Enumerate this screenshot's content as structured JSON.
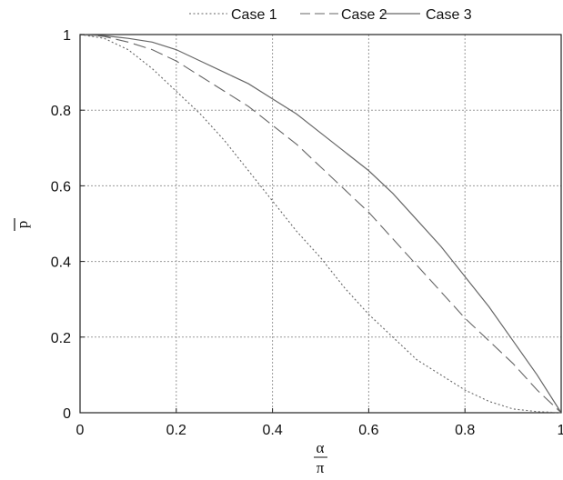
{
  "chart_data": {
    "type": "line",
    "title": "",
    "xlabel_num": "α",
    "xlabel_den": "π",
    "ylabel": "p",
    "xlim": [
      0,
      1
    ],
    "ylim": [
      0,
      1
    ],
    "x_ticks": [
      0,
      0.2,
      0.4,
      0.6,
      0.8,
      1
    ],
    "x_tick_labels": [
      "0",
      "0.2",
      "0.4",
      "0.6",
      "0.8",
      "1"
    ],
    "y_ticks": [
      0,
      0.2,
      0.4,
      0.6,
      0.8,
      1
    ],
    "y_tick_labels": [
      "0",
      "0.2",
      "0.4",
      "0.6",
      "0.8",
      "1"
    ],
    "grid": true,
    "legend_position": "top",
    "colors": {
      "series": "#666666",
      "grid": "#9a9a9a",
      "axis": "#222222"
    },
    "series": [
      {
        "name": "Case 1",
        "style": "dotted",
        "x": [
          0,
          0.05,
          0.1,
          0.15,
          0.2,
          0.25,
          0.3,
          0.35,
          0.4,
          0.45,
          0.5,
          0.55,
          0.6,
          0.65,
          0.7,
          0.75,
          0.8,
          0.85,
          0.9,
          0.95,
          1
        ],
        "y": [
          1,
          0.99,
          0.96,
          0.91,
          0.85,
          0.79,
          0.72,
          0.64,
          0.56,
          0.48,
          0.41,
          0.33,
          0.26,
          0.2,
          0.14,
          0.1,
          0.06,
          0.03,
          0.01,
          0.003,
          0
        ]
      },
      {
        "name": "Case 2",
        "style": "dashed",
        "x": [
          0,
          0.05,
          0.1,
          0.15,
          0.2,
          0.25,
          0.3,
          0.35,
          0.4,
          0.45,
          0.5,
          0.55,
          0.6,
          0.65,
          0.7,
          0.75,
          0.8,
          0.85,
          0.9,
          0.95,
          1
        ],
        "y": [
          1,
          0.995,
          0.98,
          0.96,
          0.93,
          0.89,
          0.85,
          0.81,
          0.76,
          0.71,
          0.65,
          0.59,
          0.53,
          0.46,
          0.39,
          0.32,
          0.25,
          0.19,
          0.13,
          0.06,
          0
        ]
      },
      {
        "name": "Case 3",
        "style": "solid",
        "x": [
          0,
          0.05,
          0.1,
          0.15,
          0.2,
          0.25,
          0.3,
          0.35,
          0.4,
          0.45,
          0.5,
          0.55,
          0.6,
          0.65,
          0.7,
          0.75,
          0.8,
          0.85,
          0.9,
          0.95,
          1
        ],
        "y": [
          1,
          0.997,
          0.99,
          0.98,
          0.96,
          0.93,
          0.9,
          0.87,
          0.83,
          0.79,
          0.74,
          0.69,
          0.64,
          0.58,
          0.51,
          0.44,
          0.36,
          0.28,
          0.19,
          0.1,
          0
        ]
      }
    ]
  }
}
